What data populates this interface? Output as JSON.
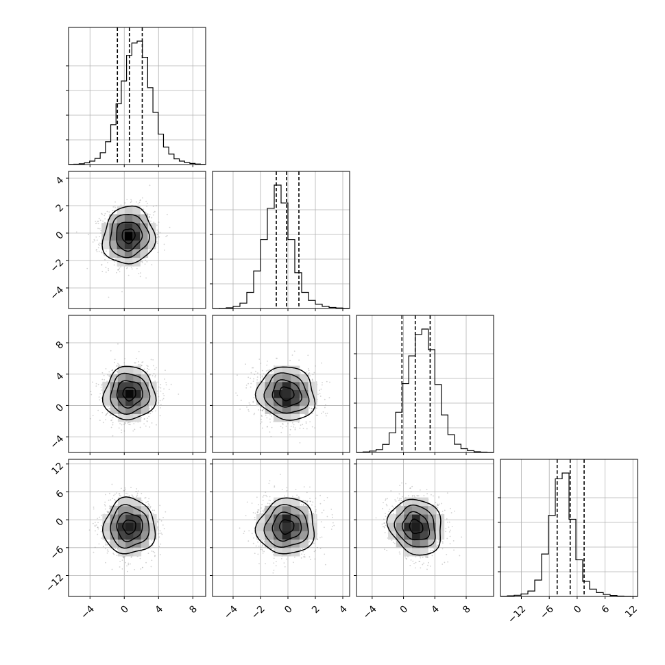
{
  "chart_data": {
    "type": "corner",
    "description_note": "",
    "grid": true,
    "parameters": [
      {
        "range": [
          -6.5,
          9.5
        ],
        "ticks": [
          -4,
          0,
          4,
          8
        ],
        "tick_labels": [
          "−4",
          "0",
          "4",
          "8"
        ],
        "quantiles": [
          -0.8,
          0.6,
          2.1
        ],
        "histogram": {
          "counts": [
            1,
            2,
            4,
            9,
            18,
            32,
            62,
            120,
            210,
            320,
            440,
            575,
            640,
            650,
            565,
            405,
            275,
            160,
            92,
            55,
            30,
            18,
            10,
            6,
            3,
            1
          ]
        }
      },
      {
        "range": [
          -5.5,
          4.5
        ],
        "ticks": [
          -4,
          -2,
          0,
          2,
          4
        ],
        "tick_labels": [
          "−4",
          "−2",
          "0",
          "2",
          "4"
        ],
        "quantiles": [
          -0.85,
          -0.1,
          0.8
        ],
        "histogram": {
          "counts": [
            0,
            1,
            4,
            12,
            30,
            90,
            210,
            385,
            560,
            690,
            590,
            385,
            200,
            90,
            45,
            24,
            12,
            6,
            3,
            1
          ]
        }
      },
      {
        "range": [
          -6.0,
          11.5
        ],
        "ticks": [
          -4,
          0,
          4,
          8
        ],
        "tick_labels": [
          "−4",
          "0",
          "4",
          "8"
        ],
        "quantiles": [
          -0.2,
          1.5,
          3.4
        ],
        "histogram": {
          "counts": [
            1,
            3,
            8,
            16,
            45,
            110,
            225,
            385,
            540,
            660,
            690,
            575,
            380,
            210,
            100,
            46,
            21,
            10,
            4,
            2,
            1
          ]
        }
      },
      {
        "range": [
          -16.5,
          13.0
        ],
        "ticks": [
          -12,
          -6,
          0,
          6,
          12
        ],
        "tick_labels": [
          "−12",
          "−6",
          "0",
          "6",
          "12"
        ],
        "quantiles": [
          -4.3,
          -1.5,
          1.5
        ],
        "histogram": {
          "counts": [
            1,
            3,
            6,
            13,
            28,
            85,
            220,
            420,
            610,
            640,
            400,
            190,
            78,
            38,
            20,
            10,
            5,
            2,
            1,
            0
          ]
        }
      }
    ],
    "pairs": [
      {
        "row": 1,
        "col": 0,
        "center": [
          0.5,
          -0.2
        ],
        "sigma": [
          1.5,
          1.05
        ],
        "rho": 0.05
      },
      {
        "row": 2,
        "col": 0,
        "center": [
          0.6,
          1.5
        ],
        "sigma": [
          1.5,
          1.7
        ],
        "rho": 0.02
      },
      {
        "row": 2,
        "col": 1,
        "center": [
          -0.1,
          1.5
        ],
        "sigma": [
          1.05,
          1.7
        ],
        "rho": -0.1
      },
      {
        "row": 3,
        "col": 0,
        "center": [
          0.6,
          -1.5
        ],
        "sigma": [
          1.5,
          3.0
        ],
        "rho": 0.0
      },
      {
        "row": 3,
        "col": 1,
        "center": [
          -0.1,
          -1.5
        ],
        "sigma": [
          1.05,
          3.0
        ],
        "rho": 0.05
      },
      {
        "row": 3,
        "col": 2,
        "center": [
          1.6,
          -1.5
        ],
        "sigma": [
          1.7,
          3.0
        ],
        "rho": -0.15
      }
    ],
    "contour_levels_sigma": [
      0.5,
      1.0,
      1.5,
      2.0
    ]
  }
}
